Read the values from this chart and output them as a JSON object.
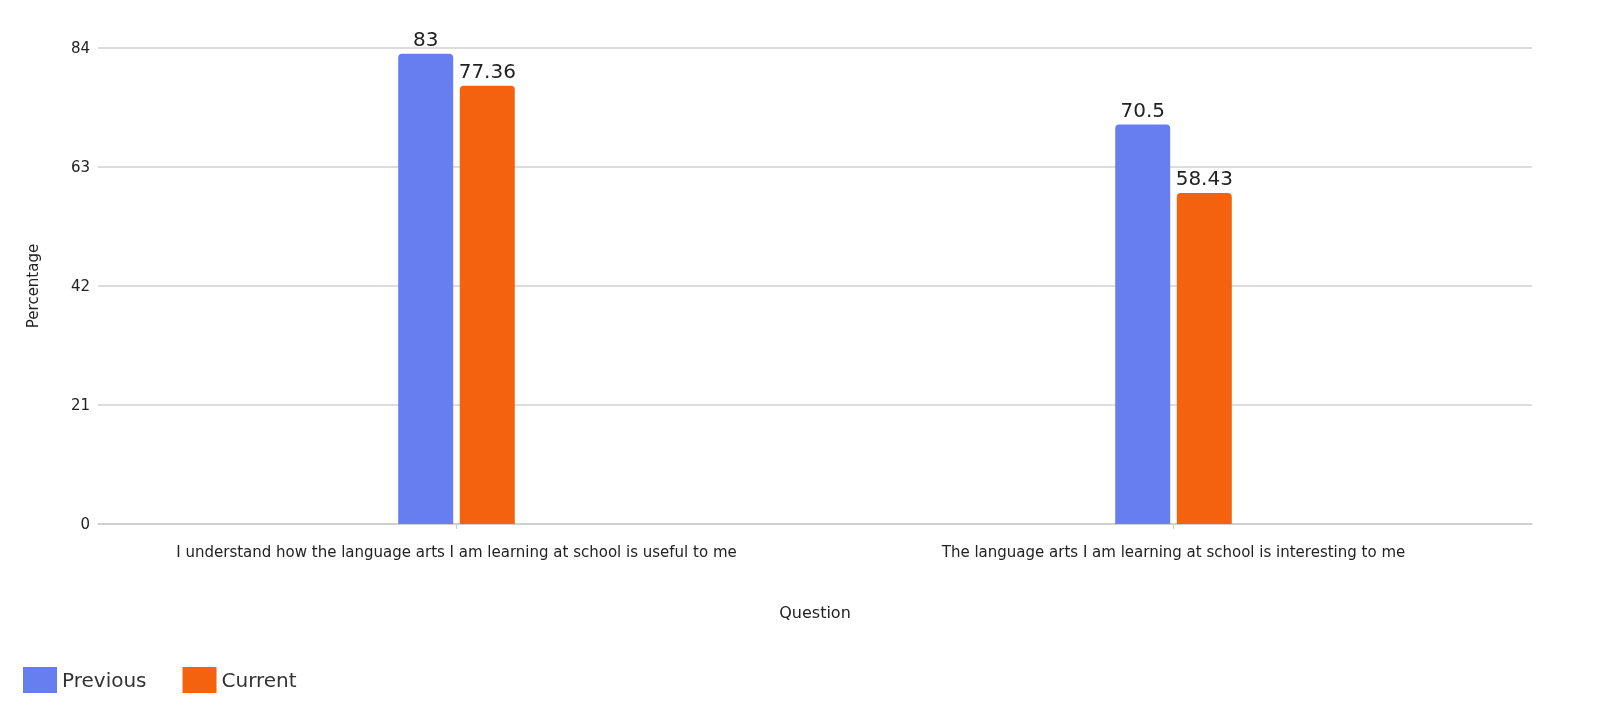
{
  "chart_data": {
    "type": "bar",
    "xlabel": "Question",
    "ylabel": "Percentage",
    "categories": [
      "I understand how the language arts I am learning at school is useful to me",
      "The language arts I am learning at school is interesting to me"
    ],
    "series": [
      {
        "name": "Previous",
        "color": "#667eef",
        "values": [
          83,
          70.5
        ]
      },
      {
        "name": "Current",
        "color": "#f4620f",
        "values": [
          77.36,
          58.43
        ]
      }
    ],
    "ylim": [
      0,
      84
    ],
    "yticks": [
      0,
      21,
      42,
      63,
      84
    ],
    "grid": "y",
    "legend": "bottom left",
    "data_labels": true
  }
}
